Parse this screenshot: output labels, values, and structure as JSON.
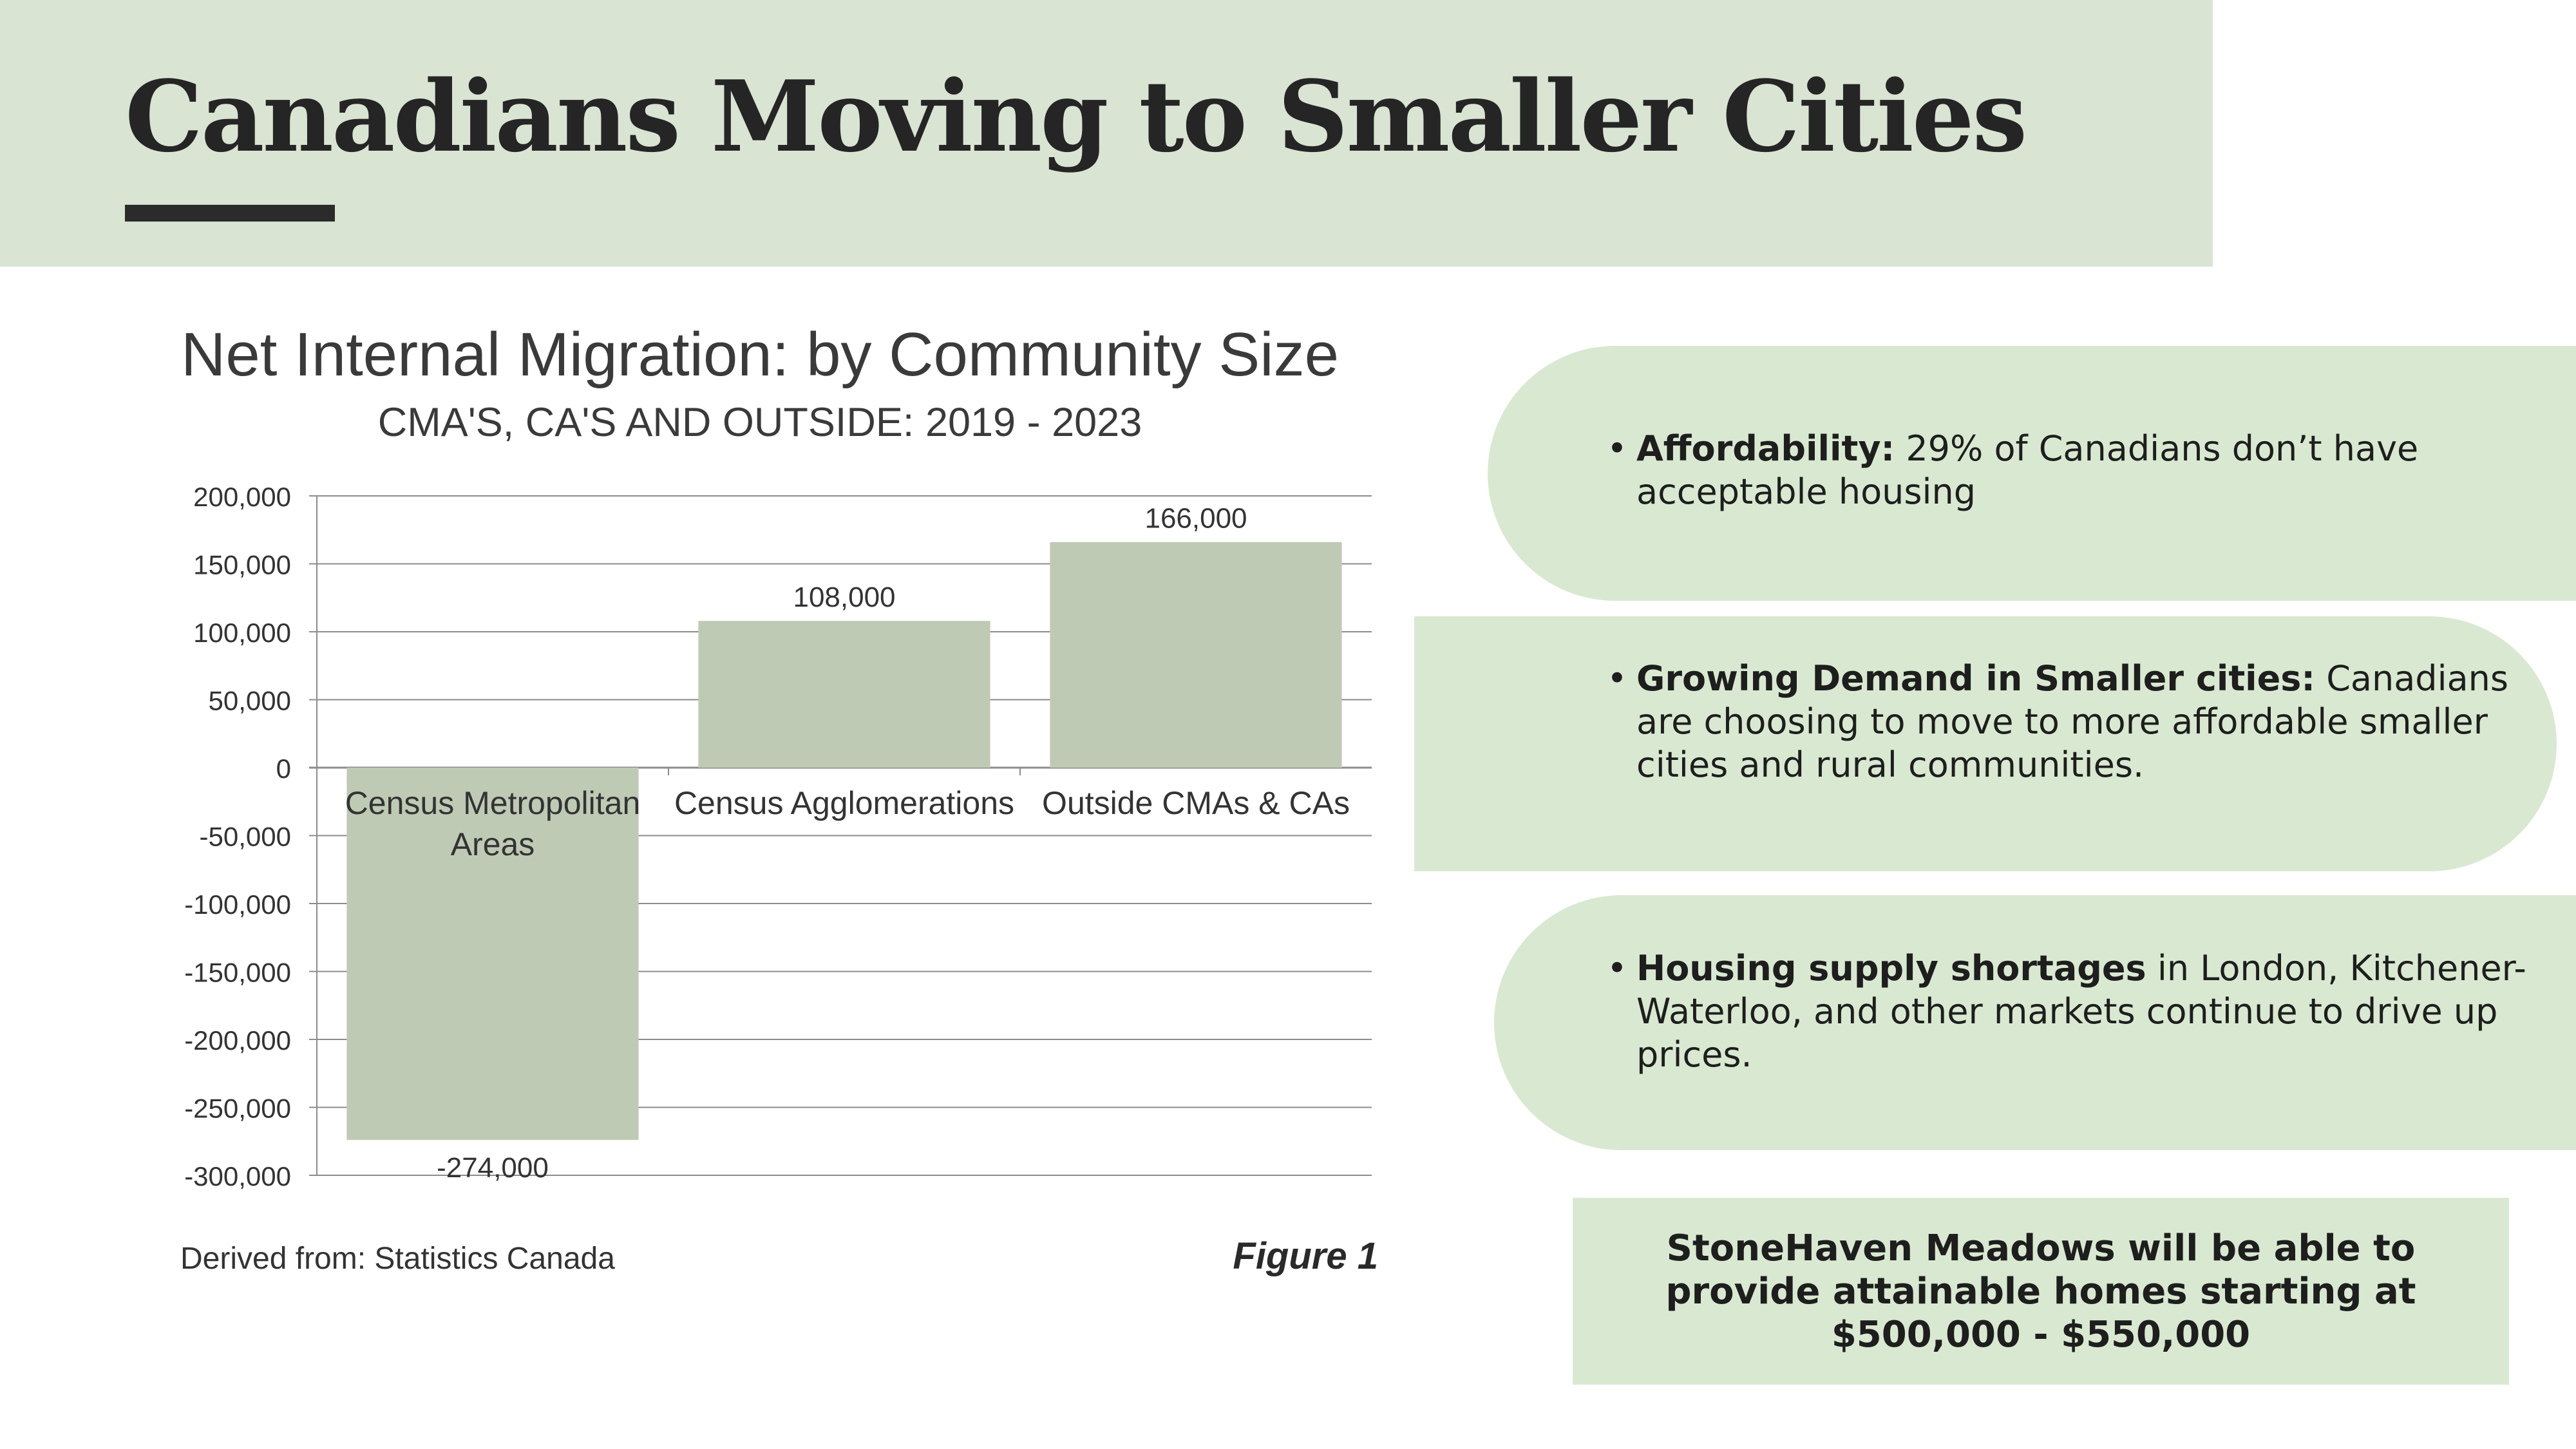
{
  "page": {
    "title": "Canadians Moving to Smaller Cities"
  },
  "colors": {
    "title_band": "#d9e4d3",
    "pill": "#d9e9d1",
    "bar": "#bfcab5",
    "text_dark": "#252525",
    "gridline": "#8c8c8c"
  },
  "chart_data": {
    "type": "bar",
    "title": "Net Internal Migration: by Community Size",
    "subtitle": "CMA'S, CA'S AND OUTSIDE: 2019 - 2023",
    "categories": [
      "Census Metropolitan Areas",
      "Census Agglomerations",
      "Outside CMAs & CAs"
    ],
    "category_label_lines": [
      [
        "Census Metropolitan",
        "Areas"
      ],
      [
        "Census Agglomerations"
      ],
      [
        "Outside CMAs & CAs"
      ]
    ],
    "values": [
      -274000,
      108000,
      166000
    ],
    "data_labels": [
      "-274,000",
      "108,000",
      "166,000"
    ],
    "ylim": [
      -300000,
      200000
    ],
    "yticks": [
      200000,
      150000,
      100000,
      50000,
      0,
      -50000,
      -100000,
      -150000,
      -200000,
      -250000,
      -300000
    ],
    "ytick_labels": [
      "200,000",
      "150,000",
      "100,000",
      "50,000",
      "0",
      "-50,000",
      "-100,000",
      "-150,000",
      "-200,000",
      "-250,000",
      "-300,000"
    ],
    "grid": true,
    "legend": "none",
    "source": "Derived from: Statistics Canada",
    "figure_label": "Figure 1"
  },
  "bullets": [
    {
      "bold": "Affordability:",
      "text": " 29% of Canadians don’t have acceptable housing"
    },
    {
      "bold": "Growing Demand in Smaller cities:",
      "text": " Canadians are choosing to move to more affordable smaller cities and rural communities."
    },
    {
      "bold": "Housing supply shortages",
      "text": " in London, Kitchener-Waterloo, and other markets continue to drive up prices."
    }
  ],
  "callout": {
    "text": "StoneHaven Meadows will be able to provide attainable homes starting at $500,000 - $550,000"
  }
}
